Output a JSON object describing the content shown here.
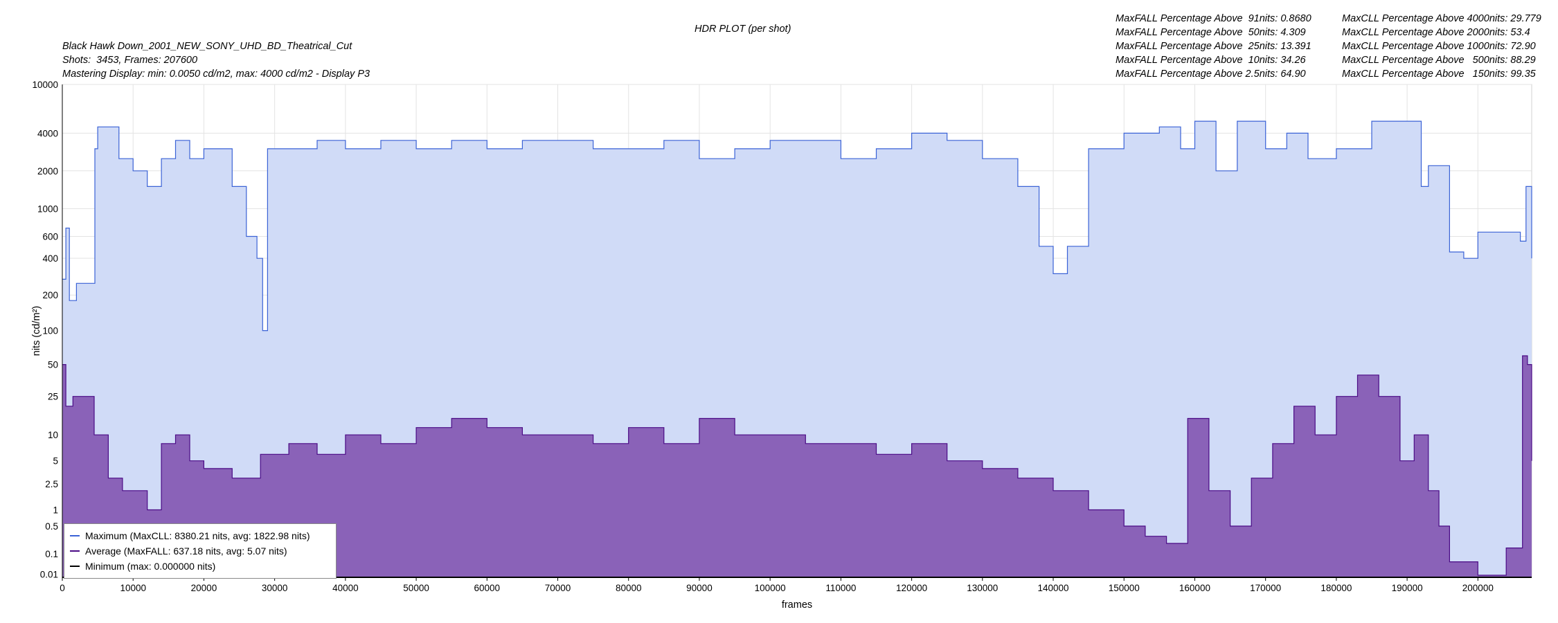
{
  "header": {
    "title": "HDR PLOT (per shot)",
    "file_name": "Black Hawk Down_2001_NEW_SONY_UHD_BD_Theatrical_Cut",
    "shots_frames": "Shots:  3453, Frames: 207600",
    "mastering": "Mastering Display: min: 0.0050 cd/m2, max: 4000 cd/m2 - Display P3",
    "maxfall_stats": [
      "MaxFALL Percentage Above  91nits: 0.8680",
      "MaxFALL Percentage Above  50nits: 4.309",
      "MaxFALL Percentage Above  25nits: 13.391",
      "MaxFALL Percentage Above  10nits: 34.26",
      "MaxFALL Percentage Above 2.5nits: 64.90"
    ],
    "maxcll_stats": [
      "MaxCLL Percentage Above 4000nits: 29.779",
      "MaxCLL Percentage Above 2000nits: 53.4",
      "MaxCLL Percentage Above 1000nits: 72.90",
      "MaxCLL Percentage Above   500nits: 88.29",
      "MaxCLL Percentage Above   150nits: 99.35"
    ]
  },
  "legend": {
    "max_label": "Maximum (MaxCLL: 8380.21 nits, avg: 1822.98 nits)",
    "avg_label": "Average (MaxFALL: 637.18 nits, avg: 5.07 nits)",
    "min_label": "Minimum (max: 0.000000 nits)"
  },
  "colors": {
    "max_line": "#3a62d6",
    "max_fill": "#d0dbf7",
    "avg_line": "#4a0a85",
    "avg_fill": "#8a62b8",
    "min_line": "#000000",
    "grid": "#e3e3e3"
  },
  "chart_data": {
    "type": "area",
    "title": "HDR PLOT (per shot)",
    "xlabel": "frames",
    "ylabel": "nits (cd/m²)",
    "xlim": [
      0,
      207600
    ],
    "ylim": [
      0.005,
      10000
    ],
    "y_scale": "pq",
    "x_ticks": [
      0,
      10000,
      20000,
      30000,
      40000,
      50000,
      60000,
      70000,
      80000,
      90000,
      100000,
      110000,
      120000,
      130000,
      140000,
      150000,
      160000,
      170000,
      180000,
      190000,
      200000
    ],
    "y_ticks": [
      0.01,
      0.1,
      0.5,
      1,
      2.5,
      5,
      10,
      25,
      50,
      100,
      200,
      400,
      600,
      1000,
      2000,
      4000,
      10000
    ],
    "grid": true,
    "legend_position": "bottom-left",
    "series": [
      {
        "name": "Maximum (MaxCLL: 8380.21 nits, avg: 1822.98 nits)",
        "x": [
          0,
          500,
          1000,
          2000,
          3000,
          4000,
          4600,
          5000,
          8000,
          10000,
          12000,
          14000,
          16000,
          18000,
          20000,
          22000,
          24000,
          26000,
          27500,
          28300,
          29000,
          32000,
          36000,
          40000,
          45000,
          50000,
          55000,
          60000,
          65000,
          70000,
          75000,
          80000,
          85000,
          90000,
          95000,
          100000,
          105000,
          110000,
          115000,
          120000,
          125000,
          130000,
          135000,
          138000,
          140000,
          142000,
          145000,
          150000,
          155000,
          158000,
          160000,
          163000,
          166000,
          170000,
          173000,
          176000,
          180000,
          185000,
          190000,
          192000,
          193000,
          194000,
          196000,
          198000,
          200000,
          204000,
          206000,
          206800,
          207600
        ],
        "values": [
          270,
          700,
          180,
          250,
          250,
          250,
          3000,
          4500,
          2500,
          2000,
          1500,
          2500,
          3500,
          2500,
          3000,
          3000,
          1500,
          600,
          400,
          100,
          3000,
          3000,
          3500,
          3000,
          3500,
          3000,
          3500,
          3000,
          3500,
          3500,
          3000,
          3000,
          3500,
          2500,
          3000,
          3500,
          3500,
          2500,
          3000,
          4000,
          3500,
          2500,
          1500,
          500,
          300,
          500,
          3000,
          4000,
          4500,
          3000,
          5000,
          2000,
          5000,
          3000,
          4000,
          2500,
          3000,
          5000,
          5000,
          1500,
          2200,
          2200,
          450,
          400,
          650,
          650,
          550,
          1500,
          400
        ]
      },
      {
        "name": "Average (MaxFALL: 637.18 nits, avg: 5.07 nits)",
        "x": [
          0,
          500,
          1500,
          2500,
          4500,
          6500,
          8500,
          10000,
          12000,
          14000,
          16000,
          18000,
          20000,
          24000,
          28000,
          32000,
          36000,
          40000,
          45000,
          50000,
          55000,
          60000,
          65000,
          70000,
          75000,
          80000,
          85000,
          90000,
          95000,
          100000,
          105000,
          110000,
          115000,
          120000,
          125000,
          130000,
          135000,
          140000,
          145000,
          150000,
          153000,
          156000,
          159000,
          162000,
          165000,
          168000,
          171000,
          174000,
          177000,
          180000,
          183000,
          186000,
          189000,
          191000,
          193000,
          194500,
          196000,
          200000,
          204000,
          205500,
          206300,
          207000,
          207600
        ],
        "values": [
          50,
          20,
          25,
          25,
          10,
          3,
          2,
          2,
          1,
          8,
          10,
          5,
          4,
          3,
          6,
          8,
          6,
          10,
          8,
          12,
          15,
          12,
          10,
          10,
          8,
          12,
          8,
          15,
          10,
          10,
          8,
          8,
          6,
          8,
          5,
          4,
          3,
          2,
          1,
          0.5,
          0.3,
          0.2,
          15,
          2,
          0.5,
          3,
          8,
          20,
          10,
          25,
          40,
          25,
          5,
          10,
          2,
          0.5,
          0.05,
          0.008,
          0.15,
          0.15,
          60,
          50,
          5
        ]
      },
      {
        "name": "Minimum (max: 0.000000 nits)",
        "x": [
          0,
          207600
        ],
        "values": [
          0.005,
          0.005
        ]
      }
    ]
  }
}
